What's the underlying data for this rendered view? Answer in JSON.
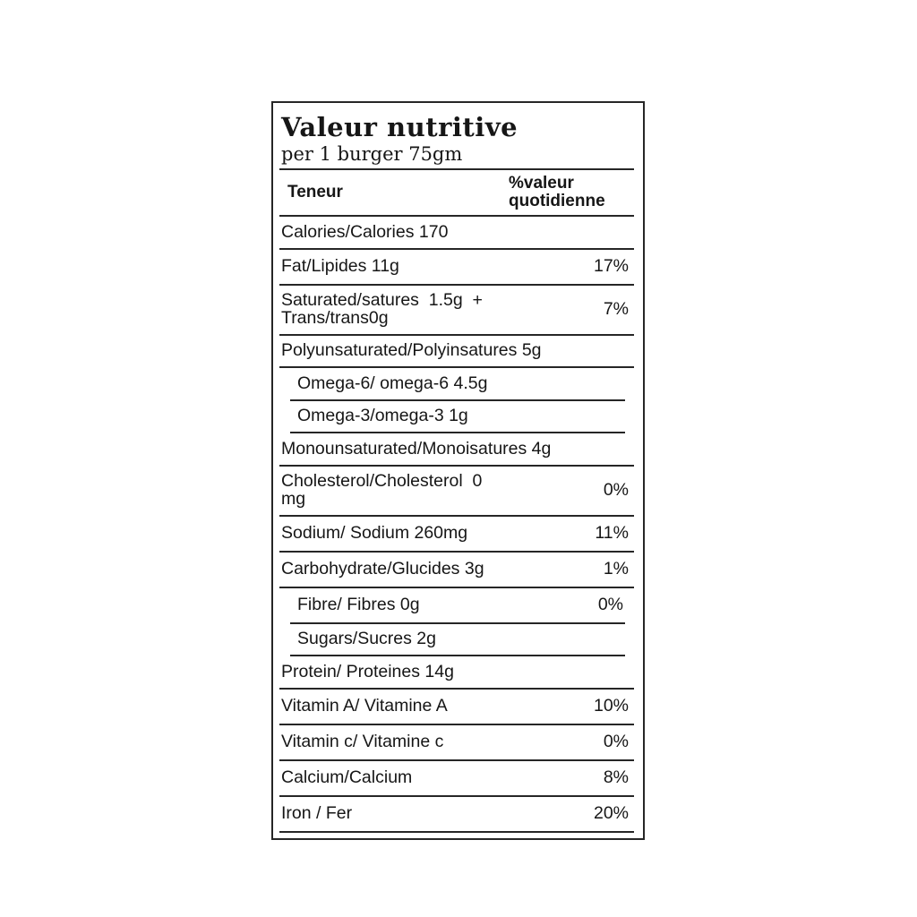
{
  "label": {
    "title": "Valeur nutritive",
    "serving": "per 1 burger 75gm",
    "header": {
      "amount_col": "Teneur",
      "dv_col_line1": "%valeur",
      "dv_col_line2": "quotidienne"
    },
    "rows": [
      {
        "lines": [
          "Calories/Calories 170"
        ],
        "dv": "",
        "indent": false
      },
      {
        "lines": [
          "Fat/Lipides 11g"
        ],
        "dv": "17%",
        "indent": false
      },
      {
        "lines": [
          "Saturated/satures  1.5g  +",
          "Trans/trans0g"
        ],
        "dv": "7%",
        "indent": false
      },
      {
        "lines": [
          "Polyunsaturated/Polyinsatures 5g"
        ],
        "dv": "",
        "indent": false
      },
      {
        "lines": [
          "Omega-6/ omega-6 4.5g"
        ],
        "dv": "",
        "indent": true
      },
      {
        "lines": [
          "Omega-3/omega-3 1g"
        ],
        "dv": "",
        "indent": true
      },
      {
        "lines": [
          "Monounsaturated/Monoisatures 4g"
        ],
        "dv": "",
        "indent": false
      },
      {
        "lines": [
          "Cholesterol/Cholesterol  0",
          "mg"
        ],
        "dv": "0%",
        "indent": false
      },
      {
        "lines": [
          "Sodium/ Sodium 260mg"
        ],
        "dv": "11%",
        "indent": false
      },
      {
        "lines": [
          "Carbohydrate/Glucides 3g"
        ],
        "dv": "1%",
        "indent": false
      },
      {
        "lines": [
          "Fibre/ Fibres 0g"
        ],
        "dv": "0%",
        "indent": true
      },
      {
        "lines": [
          "Sugars/Sucres 2g"
        ],
        "dv": "",
        "indent": true
      },
      {
        "lines": [
          "Protein/ Proteines 14g"
        ],
        "dv": "",
        "indent": false
      },
      {
        "lines": [
          "Vitamin A/ Vitamine A"
        ],
        "dv": "10%",
        "indent": false
      },
      {
        "lines": [
          "Vitamin c/ Vitamine c"
        ],
        "dv": "0%",
        "indent": false
      },
      {
        "lines": [
          "Calcium/Calcium"
        ],
        "dv": "8%",
        "indent": false
      },
      {
        "lines": [
          "Iron / Fer"
        ],
        "dv": "20%",
        "indent": false
      }
    ]
  },
  "colors": {
    "text": "#161616",
    "rule": "#262626",
    "background": "#ffffff"
  }
}
